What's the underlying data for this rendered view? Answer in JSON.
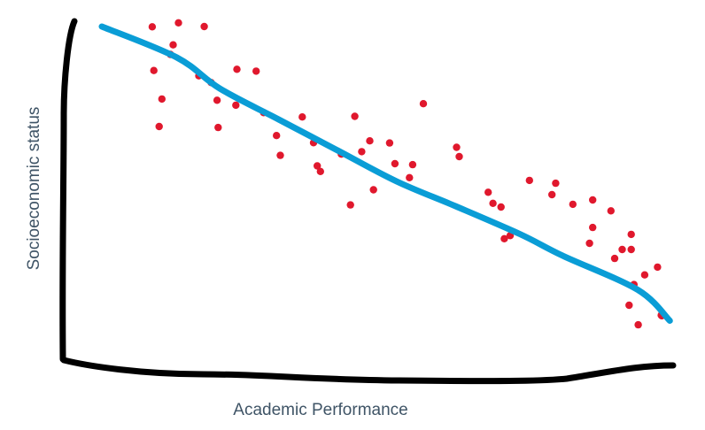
{
  "chart_data": {
    "type": "scatter",
    "title": "",
    "xlabel": "Academic Performance",
    "ylabel": "Socioeconomic status",
    "xlim": [
      0,
      100
    ],
    "ylim": [
      0,
      100
    ],
    "grid": false,
    "legend": "none",
    "colors": {
      "points": "#e0182d",
      "trend": "#0a9dd6",
      "axes": "#000000",
      "labels": "#3f5466"
    },
    "series": [
      {
        "kind": "points",
        "x": [
          9.4,
          9.7,
          11.2,
          10.7,
          12.8,
          13.3,
          14.3,
          18.1,
          19.1,
          20.4,
          21.5,
          21.7,
          25.2,
          25.0,
          28.8,
          32.6,
          30.2,
          33.3,
          37.4,
          39.5,
          40.2,
          40.8,
          44.7,
          46.4,
          47.2,
          48.5,
          50.0,
          50.7,
          53.7,
          54.7,
          58.0,
          57.4,
          60.0,
          66.2,
          66.7,
          72.1,
          73.0,
          74.5,
          75.1,
          76.2,
          79.8,
          84.7,
          84.0,
          87.9,
          91.0,
          91.6,
          91.6,
          95.0,
          95.7,
          97.1,
          98.4,
          98.8,
          98.8,
          99.3,
          100.1,
          101.3,
          103.7,
          104.4,
          104.5
        ],
        "y": [
          99.9,
          85.8,
          76.6,
          67.7,
          91.0,
          94.1,
          101.2,
          84.1,
          100.0,
          81.9,
          76.2,
          67.4,
          86.2,
          74.6,
          85.6,
          64.8,
          72.2,
          58.4,
          70.8,
          62.5,
          55.0,
          53.2,
          58.8,
          42.4,
          71.0,
          59.6,
          63.1,
          47.3,
          62.4,
          55.7,
          55.4,
          51.2,
          75.1,
          61.0,
          58.0,
          46.5,
          42.9,
          41.7,
          31.5,
          32.5,
          50.3,
          49.4,
          45.7,
          42.6,
          30.0,
          44.0,
          35.1,
          40.5,
          25.1,
          28.0,
          10.0,
          32.9,
          28.0,
          16.7,
          3.7,
          19.8,
          22.3,
          6.8,
          6.6
        ]
      },
      {
        "kind": "trend",
        "x": [
          0,
          14,
          22,
          33,
          44,
          55,
          66,
          78,
          86,
          100,
          106
        ],
        "y": [
          100,
          90,
          80,
          70,
          60,
          50,
          42,
          33,
          26,
          15,
          5
        ]
      }
    ]
  }
}
